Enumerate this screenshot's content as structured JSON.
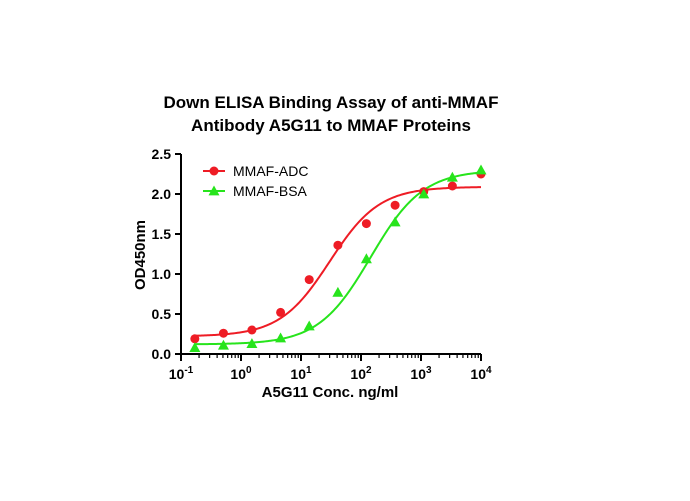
{
  "chart_data": {
    "type": "scatter",
    "title_lines": [
      "Down  ELISA Binding Assay of anti-MMAF",
      "Antibody A5G11 to MMAF Proteins"
    ],
    "xlabel": "A5G11 Conc. ng/ml",
    "ylabel": "OD450nm",
    "x_scale": "log",
    "xlim": [
      0.1,
      10000
    ],
    "ylim": [
      0,
      2.5
    ],
    "x_tick_labels": [
      "10-1",
      "100",
      "101",
      "102",
      "103",
      "104"
    ],
    "y_tick_labels": [
      "0.0",
      "0.5",
      "1.0",
      "1.5",
      "2.0",
      "2.5"
    ],
    "grid": false,
    "legend_position": "top-left",
    "series": [
      {
        "name": "MMAF-ADC",
        "color": "#ee1c25",
        "marker": "circle",
        "x": [
          0.17,
          0.51,
          1.52,
          4.57,
          13.7,
          41.2,
          123,
          370,
          1111,
          3333,
          10000
        ],
        "y": [
          0.19,
          0.26,
          0.3,
          0.52,
          0.93,
          1.36,
          1.63,
          1.86,
          2.03,
          2.1,
          2.25
        ],
        "fit": {
          "bottom": 0.22,
          "top": 2.09,
          "ec50": 30,
          "hill": 1.05
        }
      },
      {
        "name": "MMAF-BSA",
        "color": "#27e41c",
        "marker": "triangle",
        "x": [
          0.17,
          0.51,
          1.52,
          4.57,
          13.7,
          41.2,
          123,
          370,
          1111,
          3333,
          10000
        ],
        "y": [
          0.08,
          0.11,
          0.13,
          0.2,
          0.35,
          0.77,
          1.19,
          1.65,
          2.0,
          2.21,
          2.3
        ],
        "fit": {
          "bottom": 0.12,
          "top": 2.3,
          "ec50": 145,
          "hill": 1.0
        }
      }
    ]
  }
}
